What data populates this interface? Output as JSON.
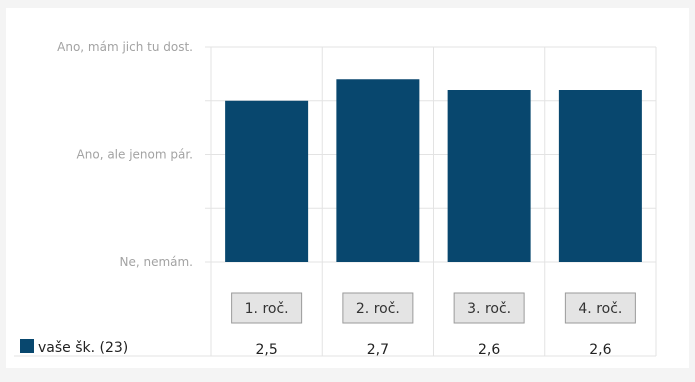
{
  "chart_data": {
    "type": "bar",
    "categories": [
      "1. roč.",
      "2. roč.",
      "3. roč.",
      "4. roč."
    ],
    "series": [
      {
        "name": "vaše šk. (23)",
        "values": [
          2.5,
          2.7,
          2.6,
          2.6
        ],
        "value_labels": [
          "2,5",
          "2,7",
          "2,6",
          "2,6"
        ],
        "color": "#08476e"
      }
    ],
    "y_ticks": [
      {
        "value": 1,
        "label": "Ne, nemám."
      },
      {
        "value": 2,
        "label": "Ano, ale jenom pár."
      },
      {
        "value": 3,
        "label": "Ano, mám jich tu dost."
      }
    ],
    "ylim": [
      1,
      3
    ],
    "grid": true,
    "legend_position": "bottom-left"
  }
}
